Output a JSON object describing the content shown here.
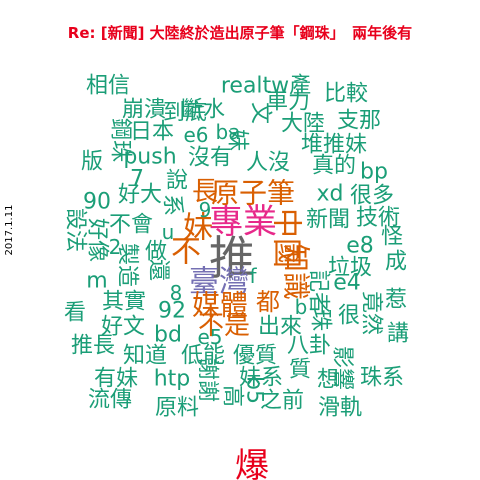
{
  "chart_data": {
    "type": "wordcloud",
    "title": "Re: [新聞] 大陸終於造出原子筆「鋼珠」　兩年後有",
    "date_label": "2017.1.11",
    "footer_label": "爆",
    "colors": {
      "title": "#e8001c",
      "footer": "#e8001c",
      "green": "#1b9e77",
      "orange": "#d95f02",
      "purple": "#7570b3",
      "magenta": "#e7298a",
      "gray": "#666666"
    },
    "words": [
      {
        "text": "推",
        "color": "gray",
        "weight": 10
      },
      {
        "text": "專業",
        "color": "magenta",
        "weight": 7
      },
      {
        "text": "臺灣",
        "color": "purple",
        "weight": 6
      },
      {
        "text": "原子筆",
        "color": "orange",
        "weight": 6
      },
      {
        "text": "中國",
        "color": "orange",
        "weight": 6
      },
      {
        "text": "知識",
        "color": "orange",
        "weight": 6
      },
      {
        "text": "媒體",
        "color": "orange",
        "weight": 6
      },
      {
        "text": "妹",
        "color": "orange",
        "weight": 6
      },
      {
        "text": "不",
        "color": "orange",
        "weight": 6
      },
      {
        "text": "長",
        "color": "orange",
        "weight": 5
      },
      {
        "text": "不是",
        "color": "orange",
        "weight": 5
      },
      {
        "text": "都",
        "color": "orange",
        "weight": 5
      },
      {
        "text": "realtw產",
        "color": "green",
        "weight": 3
      },
      {
        "text": "相信",
        "color": "green",
        "weight": 3
      },
      {
        "text": "到底",
        "color": "green",
        "weight": 3
      },
      {
        "text": "比較",
        "color": "green",
        "weight": 3
      },
      {
        "text": "崩潰",
        "color": "green",
        "weight": 3
      },
      {
        "text": "斷水",
        "color": "green",
        "weight": 3
      },
      {
        "text": "車力",
        "color": "green",
        "weight": 3
      },
      {
        "text": "支那",
        "color": "green",
        "weight": 3
      },
      {
        "text": "大陸",
        "color": "green",
        "weight": 3
      },
      {
        "text": "日本",
        "color": "green",
        "weight": 3
      },
      {
        "text": "e6",
        "color": "green",
        "weight": 3
      },
      {
        "text": "ba",
        "color": "green",
        "weight": 3
      },
      {
        "text": "文",
        "color": "green",
        "weight": 3
      },
      {
        "text": "妹",
        "color": "green",
        "weight": 3
      },
      {
        "text": "堆推妹",
        "color": "green",
        "weight": 3
      },
      {
        "text": "鋼珠",
        "color": "green",
        "weight": 3
      },
      {
        "text": "push",
        "color": "green",
        "weight": 3
      },
      {
        "text": "沒有",
        "color": "green",
        "weight": 3
      },
      {
        "text": "人沒",
        "color": "green",
        "weight": 3
      },
      {
        "text": "真的",
        "color": "green",
        "weight": 3
      },
      {
        "text": "bp",
        "color": "green",
        "weight": 3
      },
      {
        "text": "版",
        "color": "green",
        "weight": 3
      },
      {
        "text": "7",
        "color": "green",
        "weight": 3
      },
      {
        "text": "說",
        "color": "green",
        "weight": 3
      },
      {
        "text": "xd",
        "color": "green",
        "weight": 3
      },
      {
        "text": "很多",
        "color": "green",
        "weight": 3
      },
      {
        "text": "90",
        "color": "green",
        "weight": 3
      },
      {
        "text": "好大",
        "color": "green",
        "weight": 3
      },
      {
        "text": "系",
        "color": "green",
        "weight": 3
      },
      {
        "text": "9",
        "color": "green",
        "weight": 3
      },
      {
        "text": "新聞",
        "color": "green",
        "weight": 3
      },
      {
        "text": "技術",
        "color": "green",
        "weight": 3
      },
      {
        "text": "設法",
        "color": "green",
        "weight": 3
      },
      {
        "text": "好像",
        "color": "green",
        "weight": 3
      },
      {
        "text": "不會",
        "color": "green",
        "weight": 3
      },
      {
        "text": "u",
        "color": "green",
        "weight": 3
      },
      {
        "text": "e8",
        "color": "green",
        "weight": 3
      },
      {
        "text": "怪",
        "color": "green",
        "weight": 3
      },
      {
        "text": "2",
        "color": "green",
        "weight": 3
      },
      {
        "text": "做",
        "color": "green",
        "weight": 3
      },
      {
        "text": "f",
        "color": "green",
        "weight": 3
      },
      {
        "text": "垃圾",
        "color": "green",
        "weight": 3
      },
      {
        "text": "成",
        "color": "green",
        "weight": 3
      },
      {
        "text": "m",
        "color": "green",
        "weight": 3
      },
      {
        "text": "製造",
        "color": "green",
        "weight": 3
      },
      {
        "text": "還",
        "color": "green",
        "weight": 3
      },
      {
        "text": "8",
        "color": "green",
        "weight": 3
      },
      {
        "text": "e4",
        "color": "green",
        "weight": 3
      },
      {
        "text": "看",
        "color": "green",
        "weight": 3
      },
      {
        "text": "其實",
        "color": "green",
        "weight": 3
      },
      {
        "text": "92",
        "color": "green",
        "weight": 3
      },
      {
        "text": "b",
        "color": "green",
        "weight": 3
      },
      {
        "text": "很",
        "color": "green",
        "weight": 3
      },
      {
        "text": "惹",
        "color": "green",
        "weight": 3
      },
      {
        "text": "記者",
        "color": "green",
        "weight": 3
      },
      {
        "text": "好文",
        "color": "green",
        "weight": 3
      },
      {
        "text": "bd",
        "color": "green",
        "weight": 3
      },
      {
        "text": "出來",
        "color": "green",
        "weight": 3
      },
      {
        "text": "珠",
        "color": "green",
        "weight": 3
      },
      {
        "text": "竟然",
        "color": "green",
        "weight": 3
      },
      {
        "text": "講",
        "color": "green",
        "weight": 3
      },
      {
        "text": "推長",
        "color": "green",
        "weight": 3
      },
      {
        "text": "e5",
        "color": "green",
        "weight": 3
      },
      {
        "text": "知道",
        "color": "green",
        "weight": 3
      },
      {
        "text": "低能",
        "color": "green",
        "weight": 3
      },
      {
        "text": "優質",
        "color": "green",
        "weight": 3
      },
      {
        "text": "八卦",
        "color": "green",
        "weight": 3
      },
      {
        "text": "影響",
        "color": "green",
        "weight": 3
      },
      {
        "text": "有妹",
        "color": "green",
        "weight": 3
      },
      {
        "text": "htp",
        "color": "green",
        "weight": 3
      },
      {
        "text": "謝謝",
        "color": "green",
        "weight": 3
      },
      {
        "text": "妹系",
        "color": "green",
        "weight": 3
      },
      {
        "text": "質",
        "color": "green",
        "weight": 3
      },
      {
        "text": "想",
        "color": "green",
        "weight": 3
      },
      {
        "text": "珠系",
        "color": "green",
        "weight": 3
      },
      {
        "text": "流傳",
        "color": "green",
        "weight": 3
      },
      {
        "text": "原料",
        "color": "green",
        "weight": 3
      },
      {
        "text": "高",
        "color": "green",
        "weight": 3
      },
      {
        "text": "b5",
        "color": "green",
        "weight": 3
      },
      {
        "text": "之前",
        "color": "green",
        "weight": 3
      },
      {
        "text": "滑軌",
        "color": "green",
        "weight": 3
      }
    ]
  }
}
